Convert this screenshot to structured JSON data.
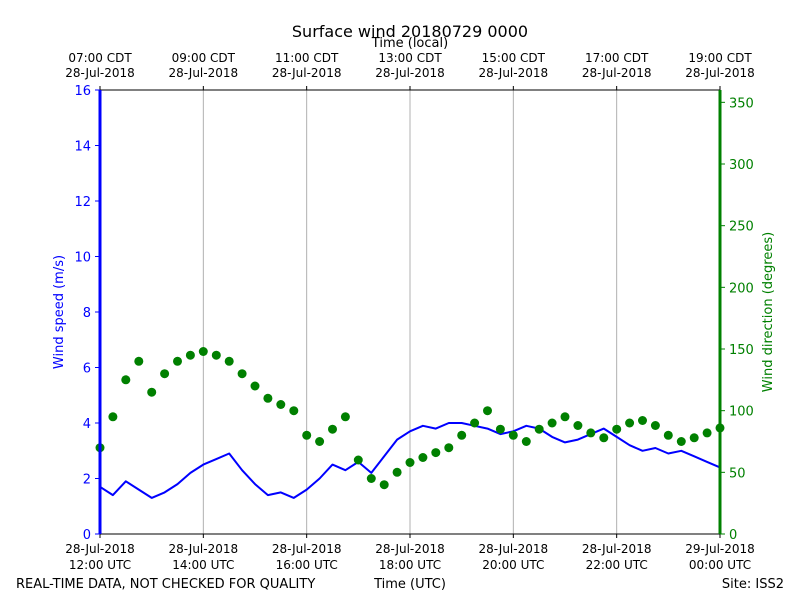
{
  "chart_data": {
    "type": "line",
    "title": "Surface wind 20180729 0000",
    "top_axis": {
      "label": "Time (local)",
      "ticks": [
        {
          "time": "07:00 CDT",
          "date": "28-Jul-2018"
        },
        {
          "time": "09:00 CDT",
          "date": "28-Jul-2018"
        },
        {
          "time": "11:00 CDT",
          "date": "28-Jul-2018"
        },
        {
          "time": "13:00 CDT",
          "date": "28-Jul-2018"
        },
        {
          "time": "15:00 CDT",
          "date": "28-Jul-2018"
        },
        {
          "time": "17:00 CDT",
          "date": "28-Jul-2018"
        },
        {
          "time": "19:00 CDT",
          "date": "28-Jul-2018"
        }
      ]
    },
    "bottom_axis": {
      "label": "Time (UTC)",
      "ticks": [
        {
          "date": "28-Jul-2018",
          "time": "12:00 UTC"
        },
        {
          "date": "28-Jul-2018",
          "time": "14:00 UTC"
        },
        {
          "date": "28-Jul-2018",
          "time": "16:00 UTC"
        },
        {
          "date": "28-Jul-2018",
          "time": "18:00 UTC"
        },
        {
          "date": "28-Jul-2018",
          "time": "20:00 UTC"
        },
        {
          "date": "28-Jul-2018",
          "time": "22:00 UTC"
        },
        {
          "date": "29-Jul-2018",
          "time": "00:00 UTC"
        }
      ]
    },
    "x_range_hours_utc": [
      12,
      24
    ],
    "left_axis": {
      "label": "Wind speed (m/s)",
      "color": "#0000ff",
      "ylim": [
        0,
        16
      ],
      "ticks": [
        "0",
        "2",
        "4",
        "6",
        "8",
        "10",
        "12",
        "14",
        "16"
      ]
    },
    "right_axis": {
      "label": "Wind direction (degrees)",
      "color": "#008000",
      "ylim": [
        0,
        360
      ],
      "ticks": [
        "0",
        "50",
        "100",
        "150",
        "200",
        "250",
        "300",
        "350"
      ]
    },
    "grid": "vertical",
    "series": [
      {
        "name": "Wind speed",
        "axis": "left",
        "style": "line",
        "color": "#0000ff",
        "x_hours_utc": [
          12.0,
          12.25,
          12.5,
          12.75,
          13.0,
          13.25,
          13.5,
          13.75,
          14.0,
          14.25,
          14.5,
          14.75,
          15.0,
          15.25,
          15.5,
          15.75,
          16.0,
          16.25,
          16.5,
          16.75,
          17.0,
          17.25,
          17.5,
          17.75,
          18.0,
          18.25,
          18.5,
          18.75,
          19.0,
          19.25,
          19.5,
          19.75,
          20.0,
          20.25,
          20.5,
          20.75,
          21.0,
          21.25,
          21.5,
          21.75,
          22.0,
          22.25,
          22.5,
          22.75,
          23.0,
          23.25,
          23.5,
          23.75,
          24.0
        ],
        "values": [
          1.7,
          1.4,
          1.9,
          1.6,
          1.3,
          1.5,
          1.8,
          2.2,
          2.5,
          2.7,
          2.9,
          2.3,
          1.8,
          1.4,
          1.5,
          1.3,
          1.6,
          2.0,
          2.5,
          2.3,
          2.6,
          2.2,
          2.8,
          3.4,
          3.7,
          3.9,
          3.8,
          4.0,
          4.0,
          3.9,
          3.8,
          3.6,
          3.7,
          3.9,
          3.8,
          3.5,
          3.3,
          3.4,
          3.6,
          3.8,
          3.5,
          3.2,
          3.0,
          3.1,
          2.9,
          3.0,
          2.8,
          2.6,
          2.4
        ]
      },
      {
        "name": "Wind direction",
        "axis": "right",
        "style": "scatter",
        "color": "#008000",
        "x_hours_utc": [
          12.0,
          12.25,
          12.5,
          12.75,
          13.0,
          13.25,
          13.5,
          13.75,
          14.0,
          14.25,
          14.5,
          14.75,
          15.0,
          15.25,
          15.5,
          15.75,
          16.0,
          16.25,
          16.5,
          16.75,
          17.0,
          17.25,
          17.5,
          17.75,
          18.0,
          18.25,
          18.5,
          18.75,
          19.0,
          19.25,
          19.5,
          19.75,
          20.0,
          20.25,
          20.5,
          20.75,
          21.0,
          21.25,
          21.5,
          21.75,
          22.0,
          22.25,
          22.5,
          22.75,
          23.0,
          23.25,
          23.5,
          23.75,
          24.0
        ],
        "values": [
          70,
          95,
          125,
          140,
          115,
          130,
          140,
          145,
          148,
          145,
          140,
          130,
          120,
          110,
          105,
          100,
          80,
          75,
          85,
          95,
          60,
          45,
          40,
          50,
          58,
          62,
          66,
          70,
          80,
          90,
          100,
          85,
          80,
          75,
          85,
          90,
          95,
          88,
          82,
          78,
          85,
          90,
          92,
          88,
          80,
          75,
          78,
          82,
          86
        ]
      }
    ]
  },
  "footer": {
    "disclaimer": "REAL-TIME DATA, NOT CHECKED FOR QUALITY",
    "site": "Site: ISS2"
  }
}
